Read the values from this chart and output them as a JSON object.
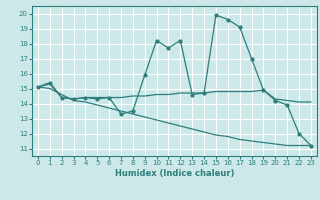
{
  "xlabel": "Humidex (Indice chaleur)",
  "bg_color": "#cce8e8",
  "grid_color": "#ffffff",
  "line_color": "#2e7d7d",
  "xlim": [
    -0.5,
    23.5
  ],
  "ylim": [
    10.5,
    20.5
  ],
  "yticks": [
    11,
    12,
    13,
    14,
    15,
    16,
    17,
    18,
    19,
    20
  ],
  "xticks": [
    0,
    1,
    2,
    3,
    4,
    5,
    6,
    7,
    8,
    9,
    10,
    11,
    12,
    13,
    14,
    15,
    16,
    17,
    18,
    19,
    20,
    21,
    22,
    23
  ],
  "line1_x": [
    0,
    1,
    2,
    3,
    4,
    5,
    6,
    7,
    8,
    9,
    10,
    11,
    12,
    13,
    14,
    15,
    16,
    17,
    18,
    19,
    20,
    21,
    22,
    23
  ],
  "line1_y": [
    15.1,
    15.4,
    14.4,
    14.3,
    14.4,
    14.3,
    14.4,
    13.3,
    13.5,
    15.9,
    18.2,
    17.7,
    18.2,
    14.6,
    14.7,
    19.9,
    19.6,
    19.1,
    17.0,
    14.9,
    14.2,
    13.9,
    12.0,
    11.2
  ],
  "line2_x": [
    0,
    1,
    2,
    3,
    4,
    5,
    6,
    7,
    8,
    9,
    10,
    11,
    12,
    13,
    14,
    15,
    16,
    17,
    18,
    19,
    20,
    21,
    22,
    23
  ],
  "line2_y": [
    15.1,
    15.3,
    14.4,
    14.3,
    14.4,
    14.4,
    14.4,
    14.4,
    14.5,
    14.5,
    14.6,
    14.6,
    14.7,
    14.7,
    14.7,
    14.8,
    14.8,
    14.8,
    14.8,
    14.9,
    14.3,
    14.2,
    14.1,
    14.1
  ],
  "line3_x": [
    0,
    1,
    2,
    3,
    4,
    5,
    6,
    7,
    8,
    9,
    10,
    11,
    12,
    13,
    14,
    15,
    16,
    17,
    18,
    19,
    20,
    21,
    22,
    23
  ],
  "line3_y": [
    15.1,
    15.0,
    14.6,
    14.2,
    14.1,
    13.9,
    13.7,
    13.5,
    13.3,
    13.1,
    12.9,
    12.7,
    12.5,
    12.3,
    12.1,
    11.9,
    11.8,
    11.6,
    11.5,
    11.4,
    11.3,
    11.2,
    11.2,
    11.2
  ]
}
